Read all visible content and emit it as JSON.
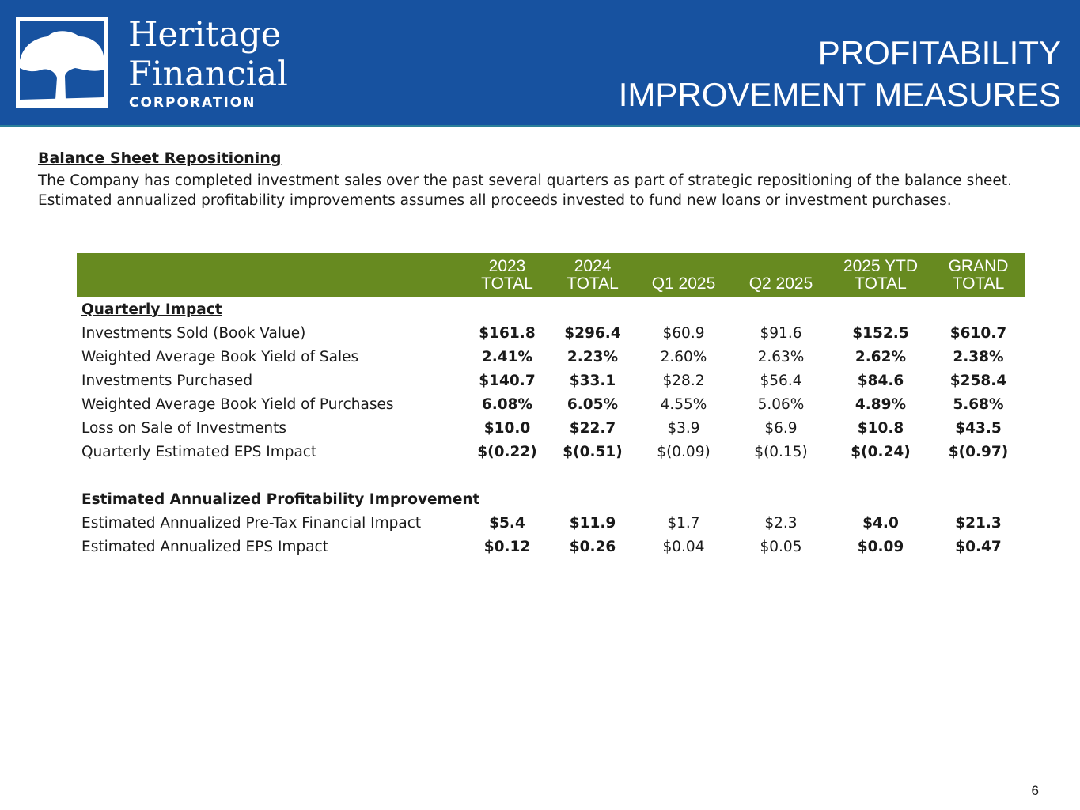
{
  "logo": {
    "name_line1": "Heritage",
    "name_line2": "Financial",
    "name_line3": "CORPORATION"
  },
  "title": {
    "line1": "PROFITABILITY",
    "line2": "IMPROVEMENT MEASURES"
  },
  "section": {
    "title": "Balance Sheet Repositioning",
    "line1": "The Company has completed investment sales over the past several quarters as part of strategic repositioning of the balance sheet.",
    "line2": "Estimated annualized profitability improvements assumes all proceeds invested to fund new loans or investment purchases."
  },
  "table": {
    "headers": [
      [
        "2023",
        "TOTAL"
      ],
      [
        "2024",
        "TOTAL"
      ],
      [
        "",
        "Q1 2025"
      ],
      [
        "",
        "Q2 2025"
      ],
      [
        "2025 YTD",
        "TOTAL"
      ],
      [
        "GRAND",
        "TOTAL"
      ]
    ],
    "section1": "Quarterly Impact",
    "rows1": [
      {
        "label": "Investments Sold (Book Value)",
        "values": [
          "$161.8",
          "$296.4",
          "$60.9",
          "$91.6",
          "$152.5",
          "$610.7"
        ]
      },
      {
        "label": "Weighted Average Book Yield of Sales",
        "values": [
          "2.41%",
          "2.23%",
          "2.60%",
          "2.63%",
          "2.62%",
          "2.38%"
        ]
      },
      {
        "label": "Investments Purchased",
        "values": [
          "$140.7",
          "$33.1",
          "$28.2",
          "$56.4",
          "$84.6",
          "$258.4"
        ]
      },
      {
        "label": "Weighted Average Book Yield of Purchases",
        "values": [
          "6.08%",
          "6.05%",
          "4.55%",
          "5.06%",
          "4.89%",
          "5.68%"
        ]
      },
      {
        "label": "Loss on Sale of Investments",
        "values": [
          "$10.0",
          "$22.7",
          "$3.9",
          "$6.9",
          "$10.8",
          "$43.5"
        ]
      },
      {
        "label": "Quarterly Estimated EPS Impact",
        "values": [
          "$(0.22)",
          "$(0.51)",
          "$(0.09)",
          "$(0.15)",
          "$(0.24)",
          "$(0.97)"
        ]
      }
    ],
    "section2": "Estimated Annualized Profitability Improvement",
    "rows2": [
      {
        "label": "Estimated Annualized Pre-Tax Financial Impact",
        "values": [
          "$5.4",
          "$11.9",
          "$1.7",
          "$2.3",
          "$4.0",
          "$21.3"
        ]
      },
      {
        "label": "Estimated Annualized EPS Impact",
        "values": [
          "$0.12",
          "$0.26",
          "$0.04",
          "$0.05",
          "$0.09",
          "$0.47"
        ]
      }
    ]
  },
  "page_number": "6"
}
